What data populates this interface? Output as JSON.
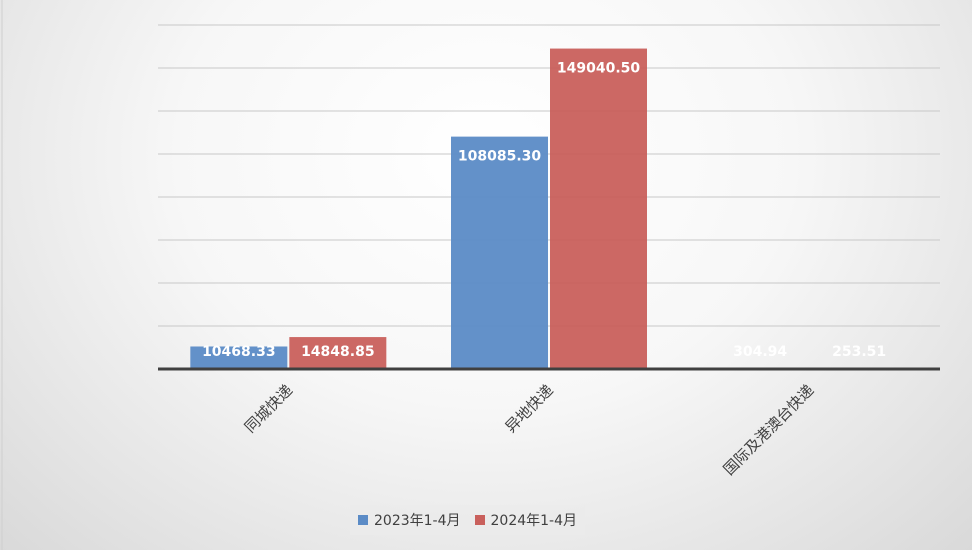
{
  "chart_data": {
    "type": "bar",
    "title": "",
    "xlabel": "",
    "ylabel": "",
    "ylim": [
      0,
      160000
    ],
    "grid": true,
    "legend_position": "bottom",
    "categories": [
      "同城快递",
      "异地快递",
      "国际及港澳台快递"
    ],
    "series": [
      {
        "name": "2023年1-4月",
        "color": "#5b8bc6",
        "values": [
          10468.33,
          108085.3,
          304.94
        ],
        "labels": [
          "10468.33",
          "108085.30",
          "304.94"
        ]
      },
      {
        "name": "2024年1-4月",
        "color": "#c9605c",
        "values": [
          14848.85,
          149040.5,
          253.51
        ],
        "labels": [
          "14848.85",
          "149040.50",
          "253.51"
        ]
      }
    ]
  }
}
